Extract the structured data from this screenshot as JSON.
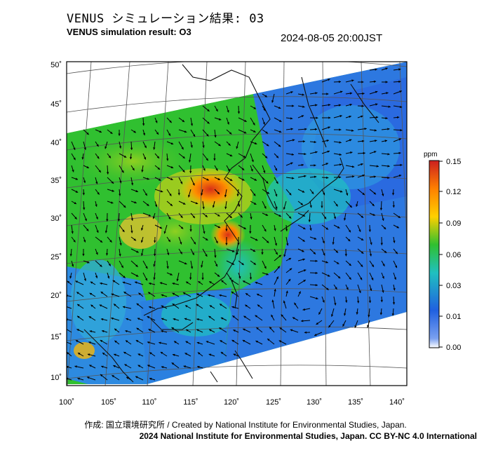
{
  "header": {
    "title_jp": "VENUS シミュレーション結果: 03",
    "title_en": "VENUS simulation result: O3",
    "timestamp": "2024-08-05 20:00JST"
  },
  "map": {
    "lat_labels": [
      "50˚",
      "45˚",
      "40˚",
      "35˚",
      "30˚",
      "25˚",
      "20˚",
      "15˚",
      "10˚"
    ],
    "lon_labels": [
      "100˚",
      "105˚",
      "110˚",
      "115˚",
      "120˚",
      "125˚",
      "130˚",
      "135˚",
      "140˚"
    ],
    "region": "East Asia",
    "variable": "O3 concentration with wind vectors"
  },
  "colorbar": {
    "unit": "ppm",
    "tick_labels": [
      "0.15",
      "0.12",
      "0.09",
      "0.06",
      "0.03",
      "0.01",
      "0.00"
    ],
    "colors": [
      "#cc2020",
      "#ff8000",
      "#ffd000",
      "#30c030",
      "#20c0c0",
      "#2060e0",
      "#ffffff"
    ]
  },
  "footer": {
    "credit": "作成: 国立環境研究所 / Created by National Institute for Environmental Studies, Japan.",
    "license": "2024 National Institute for Environmental Studies, Japan. CC BY-NC 4.0 International"
  }
}
